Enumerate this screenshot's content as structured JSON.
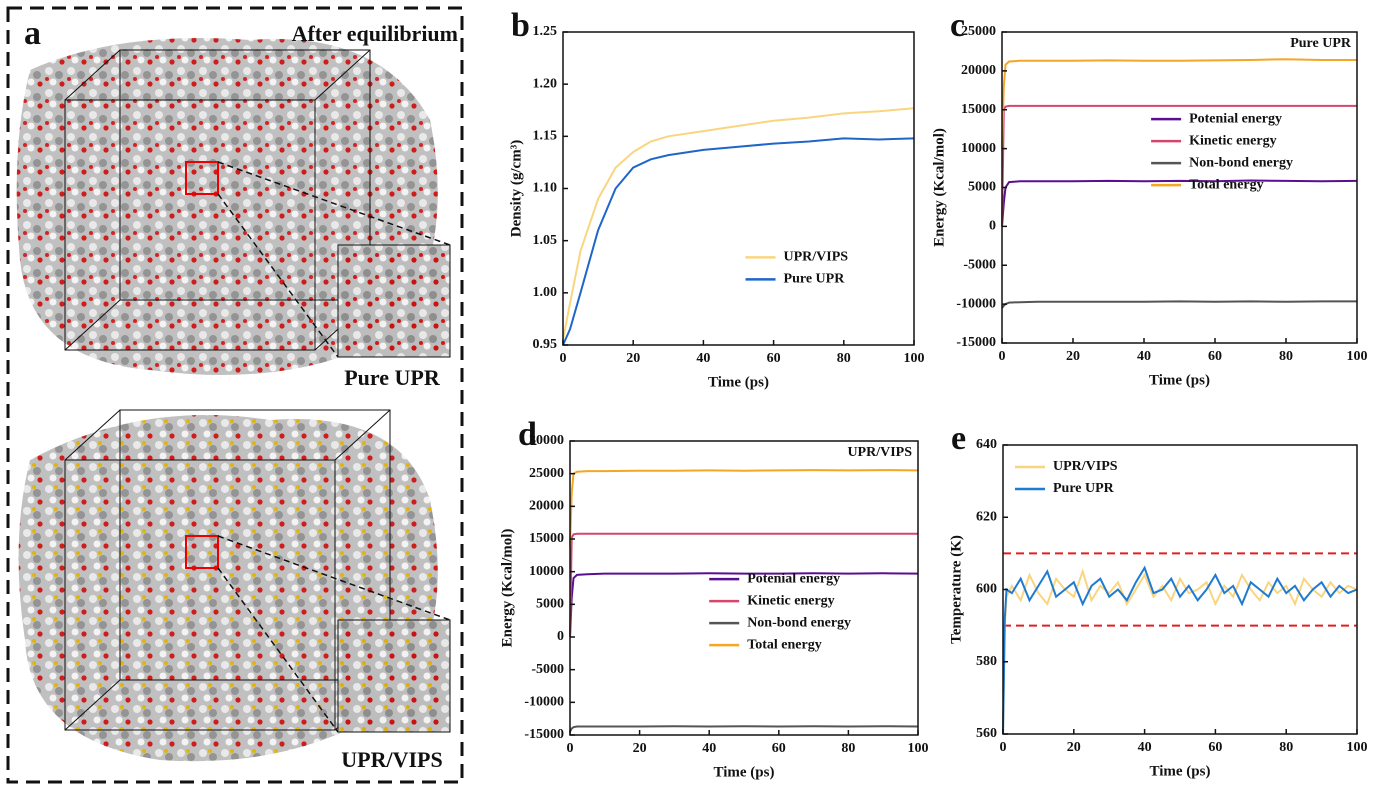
{
  "panel_a": {
    "label": "a",
    "title": "After equilibrium",
    "labels": [
      "Pure UPR",
      "UPR/VIPS"
    ]
  },
  "chart_data": [
    {
      "type": "line",
      "panel": "b",
      "x_label": "Time (ps)",
      "y_label": "Density (g/cm³)",
      "legend": "lower right",
      "x": [
        0,
        2,
        5,
        10,
        15,
        20,
        25,
        30,
        40,
        50,
        60,
        70,
        80,
        90,
        100
      ],
      "series": [
        {
          "name": "UPR/VIPS",
          "color": "#fad57f",
          "values": [
            0.955,
            0.99,
            1.04,
            1.09,
            1.12,
            1.135,
            1.145,
            1.15,
            1.155,
            1.16,
            1.165,
            1.168,
            1.172,
            1.174,
            1.177
          ]
        },
        {
          "name": "Pure UPR",
          "color": "#1f66c9",
          "values": [
            0.95,
            0.965,
            1.0,
            1.06,
            1.1,
            1.12,
            1.128,
            1.132,
            1.137,
            1.14,
            1.143,
            1.145,
            1.148,
            1.147,
            1.148
          ]
        }
      ],
      "xlim": [
        0,
        100
      ],
      "xticks": [
        0,
        20,
        40,
        60,
        80,
        100
      ],
      "ylim": [
        0.95,
        1.25
      ],
      "yticks": [
        0.95,
        {
          "value": 1,
          "label": "1.00"
        },
        1.05,
        {
          "value": 1.1,
          "label": "1.10"
        },
        1.15,
        {
          "value": 1.2,
          "label": "1.20"
        },
        1.25
      ]
    },
    {
      "type": "line",
      "panel": "c",
      "annotation": "Pure UPR",
      "x_label": "Time (ps)",
      "y_label": "Energy (Kcal/mol)",
      "legend": "center right",
      "x": [
        0,
        0.5,
        1,
        2,
        5,
        10,
        20,
        30,
        40,
        50,
        60,
        70,
        80,
        90,
        100
      ],
      "series": [
        {
          "name": "Potenial energy",
          "color": "#5a0f90",
          "values": [
            0,
            3000,
            5000,
            5700,
            5800,
            5800,
            5800,
            5850,
            5800,
            5850,
            5800,
            5900,
            5850,
            5800,
            5850
          ]
        },
        {
          "name": "Kinetic energy",
          "color": "#d4466c",
          "values": [
            0,
            15000,
            15400,
            15500,
            15500,
            15500,
            15500,
            15500,
            15500,
            15500,
            15500,
            15500,
            15500,
            15500,
            15500
          ]
        },
        {
          "name": "Non-bond energy",
          "color": "#555555",
          "values": [
            -10500,
            -10200,
            -10000,
            -9800,
            -9750,
            -9700,
            -9700,
            -9700,
            -9700,
            -9650,
            -9700,
            -9650,
            -9700,
            -9650,
            -9650
          ]
        },
        {
          "name": "Total energy",
          "color": "#f5a623",
          "values": [
            10000,
            18000,
            20800,
            21200,
            21300,
            21300,
            21300,
            21350,
            21300,
            21300,
            21350,
            21400,
            21500,
            21400,
            21400
          ]
        }
      ],
      "xlim": [
        0,
        100
      ],
      "xticks": [
        0,
        20,
        40,
        60,
        80,
        100
      ],
      "ylim": [
        -15000,
        25000
      ],
      "yticks": [
        -15000,
        -10000,
        -5000,
        0,
        5000,
        10000,
        15000,
        20000,
        25000
      ]
    },
    {
      "type": "line",
      "panel": "d",
      "annotation": "UPR/VIPS",
      "x_label": "Time (ps)",
      "y_label": "Energy (Kcal/mol)",
      "legend": "lower center",
      "x": [
        0,
        0.5,
        1,
        2,
        5,
        10,
        20,
        30,
        40,
        50,
        60,
        70,
        80,
        90,
        100
      ],
      "series": [
        {
          "name": "Potenial energy",
          "color": "#5a0f90",
          "values": [
            0,
            6000,
            9000,
            9500,
            9600,
            9700,
            9700,
            9700,
            9750,
            9700,
            9700,
            9750,
            9700,
            9750,
            9700
          ]
        },
        {
          "name": "Kinetic energy",
          "color": "#d4466c",
          "values": [
            0,
            15200,
            15700,
            15800,
            15800,
            15800,
            15800,
            15800,
            15800,
            15800,
            15800,
            15800,
            15800,
            15800,
            15800
          ]
        },
        {
          "name": "Non-bond energy",
          "color": "#555555",
          "values": [
            -14500,
            -14000,
            -13800,
            -13700,
            -13700,
            -13700,
            -13700,
            -13650,
            -13700,
            -13650,
            -13700,
            -13650,
            -13700,
            -13650,
            -13700
          ]
        },
        {
          "name": "Total energy",
          "color": "#f5a623",
          "values": [
            14000,
            22000,
            25000,
            25300,
            25400,
            25400,
            25450,
            25450,
            25500,
            25450,
            25500,
            25550,
            25500,
            25550,
            25500
          ]
        }
      ],
      "xlim": [
        0,
        100
      ],
      "xticks": [
        0,
        20,
        40,
        60,
        80,
        100
      ],
      "ylim": [
        -15000,
        30000
      ],
      "yticks": [
        -15000,
        -10000,
        -5000,
        0,
        5000,
        10000,
        15000,
        20000,
        25000,
        30000
      ]
    },
    {
      "type": "line",
      "panel": "e",
      "x_label": "Time (ps)",
      "y_label": "Temperature (K)",
      "legend": "upper left",
      "ref_lines": [
        590,
        610
      ],
      "ref_color": "#e02020",
      "x": [
        0,
        0.5,
        1,
        2.5,
        5,
        7.5,
        10,
        12.5,
        15,
        17.5,
        20,
        22.5,
        25,
        27.5,
        30,
        32.5,
        35,
        37.5,
        40,
        42.5,
        45,
        47.5,
        50,
        52.5,
        55,
        57.5,
        60,
        62.5,
        65,
        67.5,
        70,
        72.5,
        75,
        77.5,
        80,
        82.5,
        85,
        87.5,
        90,
        92.5,
        95,
        97.5,
        100
      ],
      "series": [
        {
          "name": "UPR/VIPS",
          "color": "#fad57f",
          "values": [
            560,
            590,
            598,
            601,
            597,
            604,
            599,
            596,
            603,
            600,
            598,
            605,
            597,
            601,
            599,
            602,
            596,
            600,
            604,
            598,
            601,
            597,
            603,
            599,
            600,
            602,
            596,
            601,
            598,
            604,
            600,
            597,
            602,
            599,
            601,
            596,
            603,
            600,
            598,
            602,
            599,
            601,
            600
          ]
        },
        {
          "name": "Pure UPR",
          "color": "#1f7ad1",
          "values": [
            560,
            592,
            600,
            599,
            603,
            597,
            601,
            605,
            598,
            600,
            602,
            596,
            601,
            603,
            598,
            600,
            597,
            602,
            606,
            599,
            600,
            603,
            598,
            601,
            597,
            600,
            604,
            599,
            601,
            596,
            602,
            600,
            598,
            603,
            599,
            601,
            597,
            600,
            602,
            598,
            601,
            599,
            600
          ]
        }
      ],
      "xlim": [
        0,
        100
      ],
      "xticks": [
        0,
        20,
        40,
        60,
        80,
        100
      ],
      "ylim": [
        560,
        640
      ],
      "yticks": [
        560,
        580,
        600,
        620,
        640
      ]
    }
  ]
}
